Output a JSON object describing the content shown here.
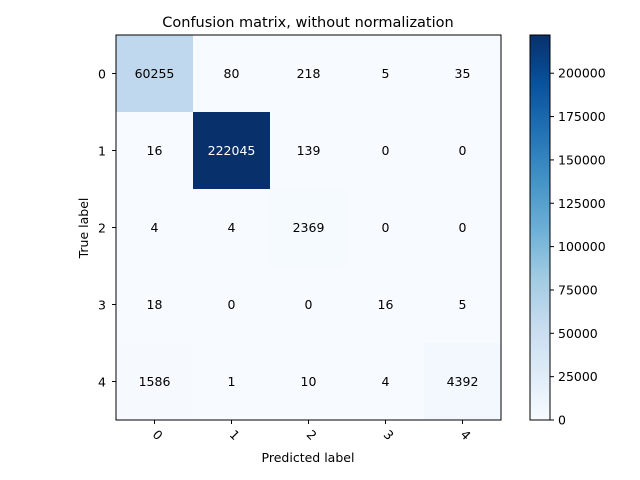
{
  "chart_data": {
    "type": "heatmap",
    "title": "Confusion matrix, without normalization",
    "xlabel": "Predicted label",
    "ylabel": "True label",
    "x_categories": [
      "0",
      "1",
      "2",
      "3",
      "4"
    ],
    "y_categories": [
      "0",
      "1",
      "2",
      "3",
      "4"
    ],
    "values": [
      [
        60255,
        80,
        218,
        5,
        35
      ],
      [
        16,
        222045,
        139,
        0,
        0
      ],
      [
        4,
        4,
        2369,
        0,
        0
      ],
      [
        18,
        0,
        0,
        16,
        5
      ],
      [
        1586,
        1,
        10,
        4,
        4392
      ]
    ],
    "colormap": "Blues",
    "colorbar": {
      "range": [
        0,
        222045
      ],
      "ticks": [
        0,
        25000,
        50000,
        75000,
        100000,
        125000,
        150000,
        175000,
        200000
      ],
      "tick_labels": [
        "0",
        "25000",
        "50000",
        "75000",
        "100000",
        "125000",
        "150000",
        "175000",
        "200000"
      ]
    },
    "text_color_dark": "#000000",
    "text_color_light": "#ffffff",
    "x_tick_rotation_deg": 45
  }
}
